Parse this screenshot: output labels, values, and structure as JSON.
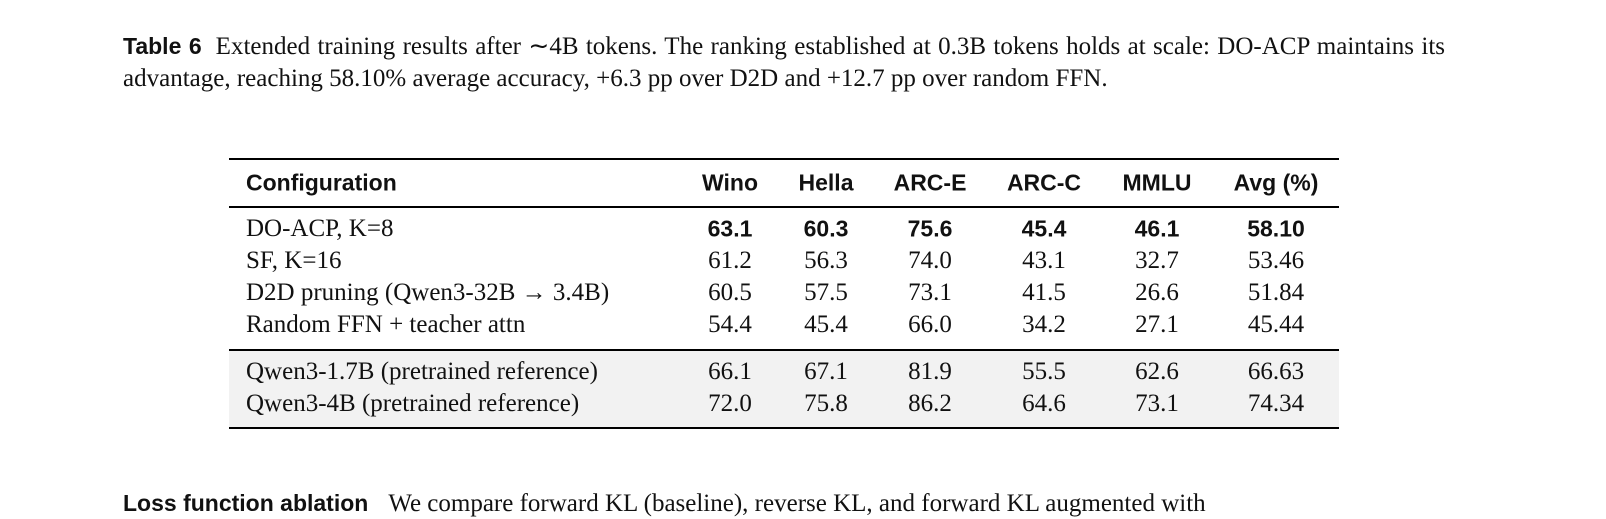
{
  "caption": {
    "label": "Table 6",
    "text": "Extended training results after ∼4B tokens. The ranking established at 0.3B tokens holds at scale: DO-ACP maintains its advantage, reaching 58.10% average accuracy, +6.3 pp over D2D and +12.7 pp over random FFN."
  },
  "table": {
    "header": [
      "Configuration",
      "Wino",
      "Hella",
      "ARC-E",
      "ARC-C",
      "MMLU",
      "Avg (%)"
    ],
    "rows": [
      [
        "DO-ACP, K=8",
        "63.1",
        "60.3",
        "75.6",
        "45.4",
        "46.1",
        "58.10"
      ],
      [
        "SF, K=16",
        "61.2",
        "56.3",
        "74.0",
        "43.1",
        "32.7",
        "53.46"
      ],
      [
        "D2D pruning (Qwen3-32B → 3.4B)",
        "60.5",
        "57.5",
        "73.1",
        "41.5",
        "26.6",
        "51.84"
      ],
      [
        "Random FFN + teacher attn",
        "54.4",
        "45.4",
        "66.0",
        "34.2",
        "27.1",
        "45.44"
      ],
      [
        "Qwen3-1.7B (pretrained reference)",
        "66.1",
        "67.1",
        "81.9",
        "55.5",
        "62.6",
        "66.63"
      ],
      [
        "Qwen3-4B (pretrained reference)",
        "72.0",
        "75.8",
        "86.2",
        "64.6",
        "73.1",
        "74.34"
      ]
    ],
    "bold_rows": [
      0
    ],
    "shaded_rows": [
      4,
      5
    ]
  },
  "next_paragraph": {
    "heading": "Loss function ablation",
    "text": "We compare forward KL (baseline), reverse KL, and forward KL augmented with"
  }
}
